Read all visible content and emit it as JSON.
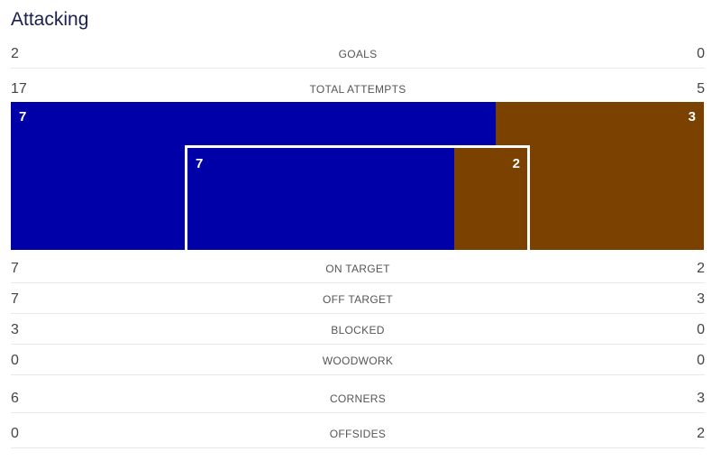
{
  "section_title": "Attacking",
  "colors": {
    "home": "#0000a8",
    "away": "#7a4100"
  },
  "goals": {
    "label": "GOALS",
    "home": "2",
    "away": "0"
  },
  "total_attempts": {
    "label": "TOTAL ATTEMPTS",
    "home": "17",
    "away": "5"
  },
  "graphic": {
    "off_target_home": "7",
    "off_target_away": "3",
    "on_target_home": "7",
    "on_target_away": "2"
  },
  "stats": [
    {
      "label": "ON TARGET",
      "home": "7",
      "away": "2"
    },
    {
      "label": "OFF TARGET",
      "home": "7",
      "away": "3"
    },
    {
      "label": "BLOCKED",
      "home": "3",
      "away": "0"
    },
    {
      "label": "WOODWORK",
      "home": "0",
      "away": "0"
    },
    {
      "label": "CORNERS",
      "home": "6",
      "away": "3"
    },
    {
      "label": "OFFSIDES",
      "home": "0",
      "away": "2"
    }
  ]
}
